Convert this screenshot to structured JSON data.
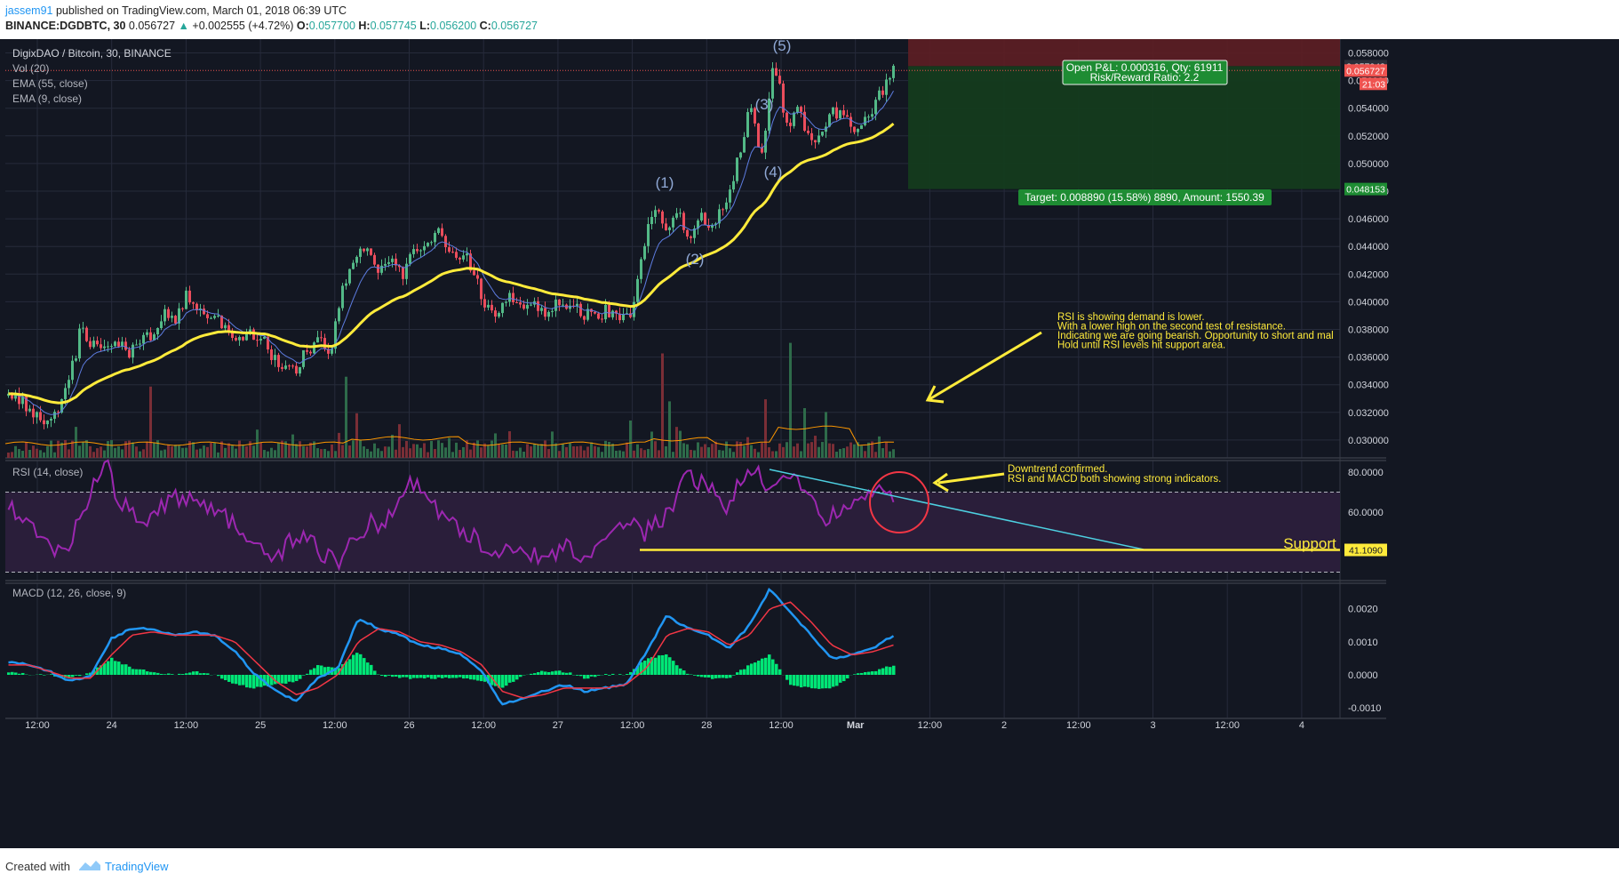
{
  "header": {
    "author": "jassem91",
    "published": "published on TradingView.com, March 01, 2018 06:39 UTC",
    "symbol_line": "BINANCE:DGDBTC, 30",
    "last": "0.056727",
    "change": "+0.002555 (+4.72%)",
    "o_label": "O:",
    "o_value": "0.057700",
    "h_label": "H:",
    "h_value": "0.057745",
    "l_label": "L:",
    "l_value": "0.056200",
    "c_label": "C:",
    "c_value": "0.056727"
  },
  "legend": {
    "main": "DigixDAO / Bitcoin, 30, BINANCE",
    "vol": "Vol (20)",
    "ema55": "EMA (55, close)",
    "ema9": "EMA (9, close)"
  },
  "footer": {
    "created": "Created with",
    "brand": "TradingView"
  },
  "colors": {
    "background": "#131722",
    "grid": "#262b3b",
    "candle_up": "#53b987",
    "candle_down": "#eb4d5c",
    "ema55": "#ffeb3b",
    "ema9": "#5d7ce0",
    "rsi": "#9c27b0",
    "macd_line": "#2196f3",
    "signal_line": "#f23645",
    "hist": "#00e676",
    "annotation": "#ffeb3b",
    "trendline": "#4dd0e1",
    "circle": "#f23645"
  },
  "chart_data": [
    {
      "type": "candlestick",
      "title": "DigixDAO / Bitcoin, 30, BINANCE",
      "timeframe": "30",
      "x_tick_labels": [
        "12:00",
        "24",
        "12:00",
        "25",
        "12:00",
        "26",
        "12:00",
        "27",
        "12:00",
        "28",
        "12:00",
        "Mar",
        "12:00",
        "2",
        "12:00",
        "3",
        "12:00",
        "4"
      ],
      "y_tick_labels": [
        "0.058000",
        "0.056000",
        "0.054000",
        "0.052000",
        "0.050000",
        "0.048000",
        "0.046000",
        "0.044000",
        "0.042000",
        "0.040000",
        "0.038000",
        "0.036000",
        "0.034000",
        "0.032000",
        "0.030000"
      ],
      "ylim": [
        0.02895,
        0.05857
      ],
      "price_path_close": [
        0.0332,
        0.0331,
        0.0318,
        0.0313,
        0.0318,
        0.0338,
        0.0378,
        0.0369,
        0.0362,
        0.0372,
        0.0362,
        0.0373,
        0.0378,
        0.0393,
        0.0389,
        0.0405,
        0.0395,
        0.0391,
        0.0379,
        0.0376,
        0.0375,
        0.0377,
        0.0361,
        0.0352,
        0.0349,
        0.0366,
        0.0371,
        0.0363,
        0.0414,
        0.0431,
        0.0441,
        0.0423,
        0.0434,
        0.0418,
        0.0437,
        0.0444,
        0.0448,
        0.0438,
        0.0435,
        0.0419,
        0.0395,
        0.0393,
        0.0403,
        0.0396,
        0.0398,
        0.0394,
        0.0401,
        0.0399,
        0.0393,
        0.0386,
        0.0394,
        0.0393,
        0.0384,
        0.0439,
        0.0472,
        0.0447,
        0.0467,
        0.0442,
        0.0463,
        0.0453,
        0.0476,
        0.0501,
        0.0542,
        0.0505,
        0.0577,
        0.0528,
        0.0539,
        0.0518,
        0.0523,
        0.054,
        0.0532,
        0.0521,
        0.0535,
        0.0553,
        0.0567
      ],
      "waves": [
        "(1)",
        "(2)",
        "(3)",
        "(4)",
        "(5)"
      ],
      "current_price_tag": "0.056727",
      "countdown_tag": "21:03",
      "position_tags": [
        "0.057043",
        "0.048153"
      ],
      "position_label": "Open P&L: 0.000316, Qty: 61911",
      "position_label2": "Risk/Reward Ratio: 2.2",
      "target_label": "Target: 0.008890 (15.58%) 8890, Amount: 1550.39",
      "annotation_lines": [
        "RSI is showing demand is lower.",
        "With a lower high on the second test of resistance.",
        "Indicating we are going bearish. Opportunity to short and mal",
        "Hold until RSI levels hit support area."
      ]
    },
    {
      "type": "line",
      "title": "RSI (14, close)",
      "y_tick_labels": [
        "80.0000",
        "60.0000"
      ],
      "ylim": [
        30,
        84
      ],
      "band": [
        30,
        70
      ],
      "support_value": 41.109,
      "support_tag": "41.1090",
      "support_label": "Support",
      "note_lines": [
        "Downtrend confirmed.",
        "RSI and MACD both showing strong indicators."
      ],
      "values": [
        66,
        55,
        50,
        44,
        38,
        56,
        70,
        85,
        65,
        60,
        58,
        62,
        66,
        68,
        64,
        62,
        56,
        46,
        40,
        38,
        42,
        50,
        44,
        38,
        34,
        46,
        55,
        52,
        60,
        78,
        70,
        60,
        55,
        50,
        45,
        40,
        42,
        45,
        38,
        33,
        45,
        40,
        38,
        42,
        50,
        58,
        50,
        55,
        60,
        80,
        75,
        70,
        63,
        75,
        80,
        70,
        82,
        75,
        65,
        55,
        62,
        60,
        68,
        72,
        65
      ]
    },
    {
      "type": "line",
      "title": "MACD (12, 26, close, 9)",
      "y_tick_labels": [
        "0.0020",
        "0.0010",
        "0.0000",
        "-0.0010"
      ],
      "ylim": [
        -0.00117,
        0.00272
      ],
      "macd": [
        0.0004,
        0.0003,
        0.0001,
        -0.0002,
        0.0,
        0.0011,
        0.0014,
        0.0014,
        0.0012,
        0.0013,
        0.0012,
        0.0007,
        0.0,
        -0.0005,
        -0.0008,
        -0.0001,
        0.0002,
        0.0017,
        0.0014,
        0.0012,
        0.0009,
        0.0008,
        0.0006,
        0.0001,
        -0.0009,
        -0.0007,
        -0.0005,
        -0.0003,
        -0.0005,
        -0.0004,
        -0.0003,
        0.0007,
        0.0018,
        0.0014,
        0.0012,
        0.0008,
        0.0015,
        0.0026,
        0.0019,
        0.0012,
        0.0005,
        0.0006,
        0.0008,
        0.0012
      ],
      "signal": [
        0.0003,
        0.0003,
        0.0001,
        -0.0001,
        -0.0001,
        0.0006,
        0.0012,
        0.0013,
        0.0012,
        0.0012,
        0.0012,
        0.001,
        0.0004,
        -0.0002,
        -0.0006,
        -0.0004,
        0.0,
        0.001,
        0.0014,
        0.0013,
        0.001,
        0.0009,
        0.0007,
        0.0003,
        -0.0005,
        -0.0007,
        -0.0006,
        -0.0004,
        -0.0004,
        -0.0004,
        -0.0003,
        0.0002,
        0.0012,
        0.0014,
        0.0013,
        0.0009,
        0.0012,
        0.002,
        0.0022,
        0.0016,
        0.0009,
        0.0006,
        0.0007,
        0.0009
      ]
    }
  ]
}
